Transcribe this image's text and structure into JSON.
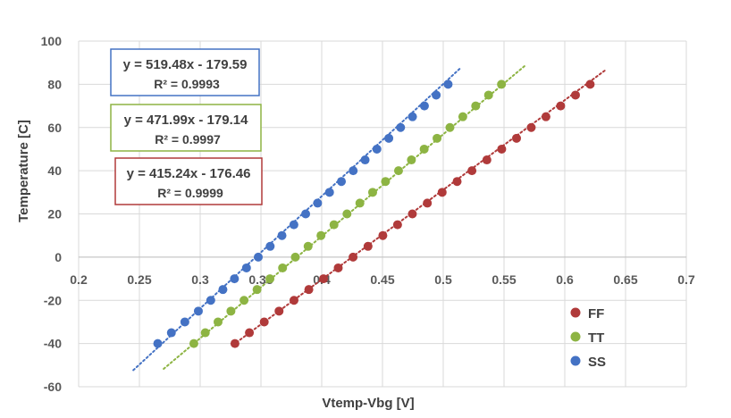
{
  "chart_data": {
    "type": "scatter",
    "title": "",
    "xlabel": "Vtemp-Vbg [V]",
    "ylabel": "Temperature [C]",
    "xlim": [
      0.2,
      0.7
    ],
    "ylim": [
      -60,
      100
    ],
    "x_ticks": [
      "0.2",
      "0.25",
      "0.3",
      "0.35",
      "0.4",
      "0.45",
      "0.5",
      "0.55",
      "0.6",
      "0.65",
      "0.7"
    ],
    "y_ticks": [
      "100",
      "80",
      "60",
      "40",
      "20",
      "0",
      "-20",
      "-40",
      "-60"
    ],
    "grid": "horizontal",
    "legend_position": "bottom-right",
    "series": [
      {
        "name": "FF",
        "color": "#b03a3a",
        "slope": 415.24,
        "intercept": -176.46,
        "equation": "y = 415.24x - 176.46",
        "r2": "R² = 0.9999",
        "x": [
          0.3286,
          0.3405,
          0.3527,
          0.3649,
          0.3772,
          0.3894,
          0.4015,
          0.4136,
          0.4258,
          0.4381,
          0.4503,
          0.4624,
          0.4746,
          0.4869,
          0.4991,
          0.5114,
          0.5236,
          0.5359,
          0.5481,
          0.5603,
          0.5724,
          0.5845,
          0.5966,
          0.6088,
          0.6209
        ],
        "y": [
          -40,
          -35,
          -30,
          -25,
          -20,
          -15,
          -10,
          -5,
          0,
          5,
          10,
          15,
          20,
          25,
          30,
          35,
          40,
          45,
          50,
          55,
          60,
          65,
          70,
          75,
          80
        ]
      },
      {
        "name": "TT",
        "color": "#8db443",
        "slope": 471.99,
        "intercept": -179.14,
        "equation": "y = 471.99x - 179.14",
        "r2": "R² = 0.9997",
        "x": [
          0.2948,
          0.3042,
          0.3147,
          0.3253,
          0.3361,
          0.3468,
          0.3574,
          0.3678,
          0.3783,
          0.3888,
          0.3994,
          0.4101,
          0.4208,
          0.4314,
          0.4419,
          0.4525,
          0.4632,
          0.4738,
          0.4843,
          0.4949,
          0.5055,
          0.5161,
          0.5267,
          0.5373,
          0.5479
        ],
        "y": [
          -40,
          -35,
          -30,
          -25,
          -20,
          -15,
          -10,
          -5,
          0,
          5,
          10,
          15,
          20,
          25,
          30,
          35,
          40,
          45,
          50,
          55,
          60,
          65,
          70,
          75,
          80
        ]
      },
      {
        "name": "SS",
        "color": "#4472c4",
        "slope": 519.48,
        "intercept": -179.59,
        "equation": "y = 519.48x - 179.59",
        "r2": "R² = 0.9993",
        "x": [
          0.2651,
          0.2763,
          0.2874,
          0.2985,
          0.3087,
          0.3187,
          0.3282,
          0.3381,
          0.3478,
          0.3576,
          0.3673,
          0.3771,
          0.3868,
          0.3966,
          0.4064,
          0.4162,
          0.4259,
          0.4357,
          0.4454,
          0.4552,
          0.4649,
          0.4747,
          0.4845,
          0.4942,
          0.504
        ],
        "y": [
          -40,
          -35,
          -30,
          -25,
          -20,
          -15,
          -10,
          -5,
          0,
          5,
          10,
          15,
          20,
          25,
          30,
          35,
          40,
          45,
          50,
          55,
          60,
          65,
          70,
          75,
          80
        ]
      }
    ],
    "trendline_x": [
      [
        0.327,
        0.634
      ],
      [
        0.27,
        0.567
      ],
      [
        0.245,
        0.515
      ]
    ],
    "equation_boxes_order": [
      "SS",
      "TT",
      "FF"
    ]
  }
}
